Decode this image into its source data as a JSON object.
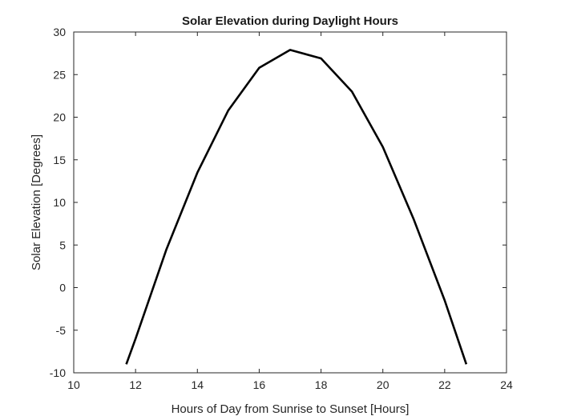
{
  "chart_data": {
    "type": "line",
    "title": "Solar Elevation during Daylight Hours",
    "xlabel": "Hours of Day from Sunrise to Sunset [Hours]",
    "ylabel": "Solar Elevation [Degrees]",
    "xlim": [
      10,
      24
    ],
    "ylim": [
      -10,
      30
    ],
    "xticks": [
      "10",
      "12",
      "14",
      "16",
      "18",
      "20",
      "22",
      "24"
    ],
    "yticks": [
      "-10",
      "-5",
      "0",
      "5",
      "10",
      "15",
      "20",
      "25",
      "30"
    ],
    "grid": false,
    "line_color": "#000000",
    "series": [
      {
        "x": [
          11.7,
          12.0,
          13.0,
          14.0,
          15.0,
          16.0,
          17.0,
          18.0,
          19.0,
          20.0,
          21.0,
          22.0,
          22.7
        ],
        "values": [
          -9.0,
          -6.0,
          4.5,
          13.5,
          20.8,
          25.8,
          27.9,
          26.9,
          23.0,
          16.5,
          8.0,
          -1.5,
          -9.0
        ]
      }
    ]
  }
}
